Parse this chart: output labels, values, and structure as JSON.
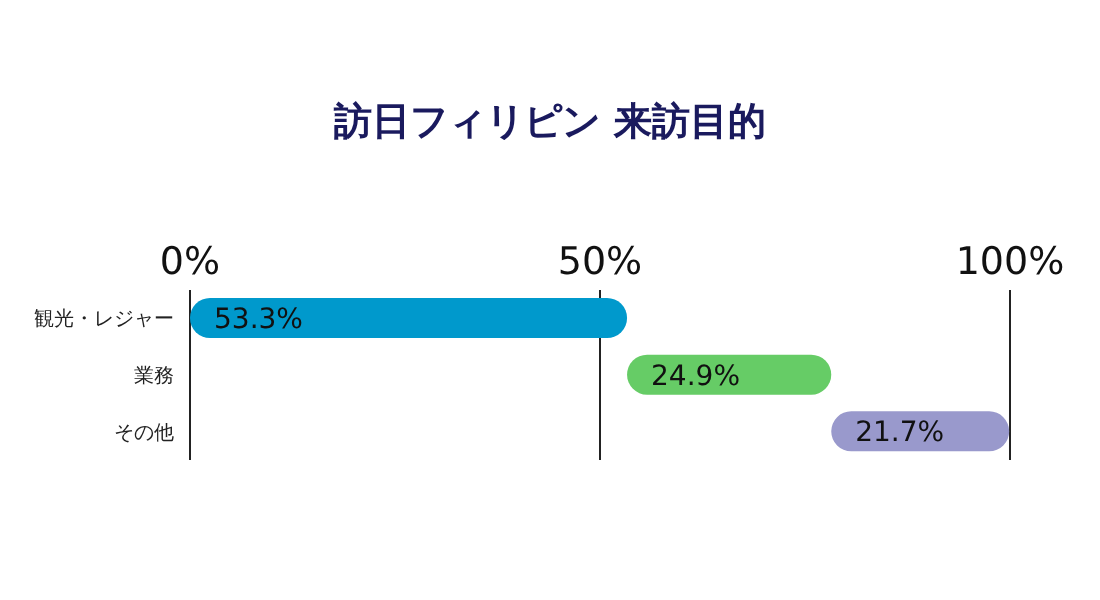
{
  "chart_data": {
    "type": "bar",
    "title": "訪日フィリピン 来訪目的",
    "orientation": "horizontal",
    "categories": [
      "観光・レジャー",
      "業務",
      "その他"
    ],
    "values": [
      53.3,
      24.9,
      21.7
    ],
    "base": [
      0,
      53.3,
      78.2
    ],
    "colors": [
      "#0099cc",
      "#66cc66",
      "#9999cc"
    ],
    "value_labels": [
      "53.3%",
      "24.9%",
      "21.7%"
    ],
    "xlim": [
      0,
      100
    ],
    "xticks": [
      {
        "value": 0,
        "label": "0%"
      },
      {
        "value": 50,
        "label": "50%"
      },
      {
        "value": 100,
        "label": "100%"
      }
    ],
    "grid": "x"
  }
}
